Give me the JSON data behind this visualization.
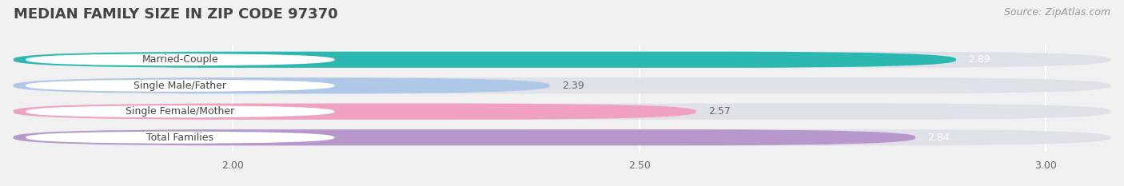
{
  "title": "MEDIAN FAMILY SIZE IN ZIP CODE 97370",
  "source": "Source: ZipAtlas.com",
  "categories": [
    "Married-Couple",
    "Single Male/Father",
    "Single Female/Mother",
    "Total Families"
  ],
  "values": [
    2.89,
    2.39,
    2.57,
    2.84
  ],
  "bar_colors": [
    "#2ab8b0",
    "#afc8e8",
    "#f0a0c0",
    "#b898cc"
  ],
  "value_text_colors": [
    "#ffffff",
    "#666666",
    "#666666",
    "#ffffff"
  ],
  "xlim_min": 1.73,
  "xlim_max": 3.08,
  "xticks": [
    2.0,
    2.5,
    3.0
  ],
  "title_fontsize": 13,
  "source_fontsize": 9,
  "bar_label_fontsize": 9,
  "value_fontsize": 9,
  "tick_fontsize": 9,
  "background_color": "#f0f0f0",
  "bar_background_color": "#e0e0e8",
  "bar_height": 0.62,
  "label_box_color": "#ffffff",
  "label_text_color": "#444444",
  "gridline_color": "#ffffff"
}
